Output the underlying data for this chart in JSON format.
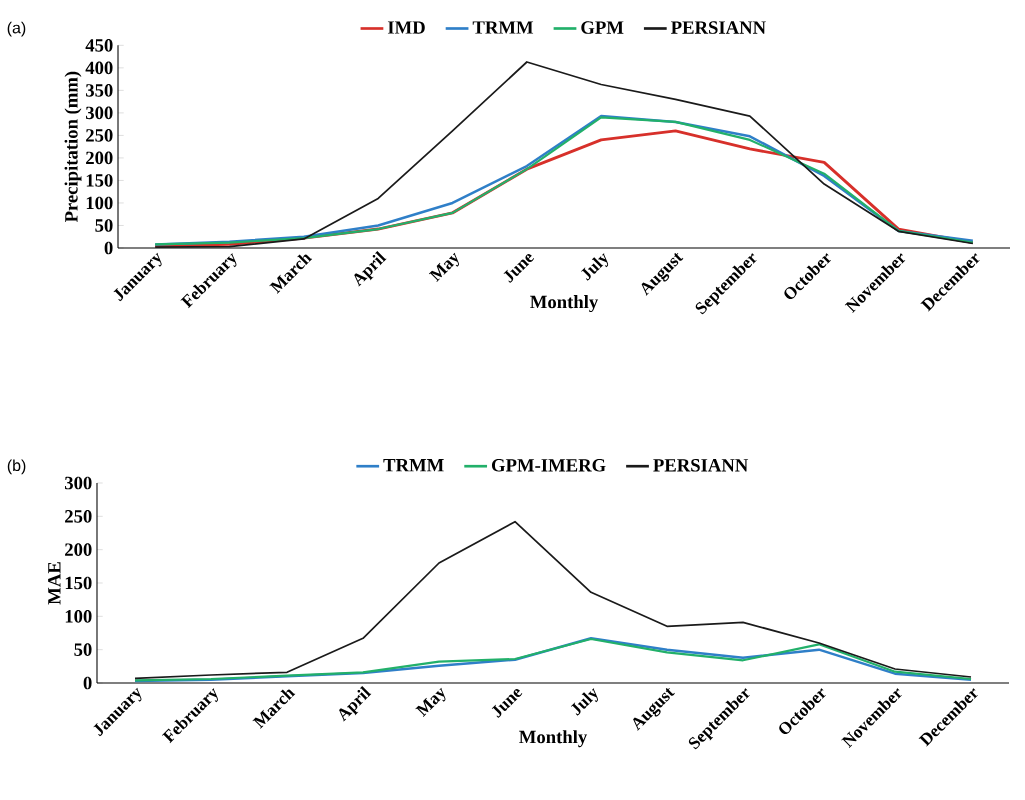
{
  "chart_data": [
    {
      "type": "line",
      "xlabel": "Monthly",
      "ylabel": "Precipitation (mm)",
      "annotations": [
        "(a)"
      ],
      "categories": [
        "January",
        "February",
        "March",
        "April",
        "May",
        "June",
        "July",
        "August",
        "September",
        "October",
        "November",
        "December"
      ],
      "ylim": [
        0,
        450
      ],
      "yticks": [
        0,
        50,
        100,
        150,
        200,
        250,
        300,
        350,
        400,
        450
      ],
      "legend": "top",
      "marker": "none",
      "line_style": "solid",
      "series": [
        {
          "name": "IMD",
          "color": "#d7302a",
          "values": [
            5,
            8,
            22,
            42,
            78,
            175,
            240,
            260,
            220,
            190,
            42,
            12
          ]
        },
        {
          "name": "TRMM",
          "color": "#2f7fc8",
          "values": [
            8,
            14,
            25,
            50,
            100,
            182,
            293,
            280,
            248,
            160,
            38,
            16
          ]
        },
        {
          "name": "GPM",
          "color": "#22b06a",
          "values": [
            8,
            12,
            22,
            42,
            78,
            175,
            290,
            280,
            240,
            165,
            38,
            12
          ]
        },
        {
          "name": "PERSIANN",
          "color": "#1a1a1a",
          "values": [
            2,
            3,
            20,
            110,
            260,
            413,
            363,
            330,
            293,
            142,
            37,
            10
          ]
        }
      ]
    },
    {
      "type": "line",
      "xlabel": "Monthly",
      "ylabel": "MAE",
      "annotations": [
        "(b)"
      ],
      "categories": [
        "January",
        "February",
        "March",
        "April",
        "May",
        "June",
        "July",
        "August",
        "September",
        "October",
        "November",
        "December"
      ],
      "ylim": [
        0,
        300
      ],
      "yticks": [
        0,
        50,
        100,
        150,
        200,
        250,
        300
      ],
      "legend": "top",
      "marker": "none",
      "line_style": "solid",
      "series": [
        {
          "name": "TRMM",
          "color": "#2f7fc8",
          "values": [
            3,
            5,
            10,
            15,
            26,
            35,
            67,
            50,
            38,
            50,
            14,
            5
          ]
        },
        {
          "name": "GPM-IMERG",
          "color": "#22b06a",
          "values": [
            4,
            6,
            11,
            16,
            32,
            36,
            66,
            46,
            34,
            58,
            17,
            6
          ]
        },
        {
          "name": "PERSIANN",
          "color": "#1a1a1a",
          "values": [
            7,
            12,
            16,
            67,
            180,
            242,
            136,
            85,
            91,
            60,
            21,
            9
          ]
        }
      ]
    }
  ]
}
